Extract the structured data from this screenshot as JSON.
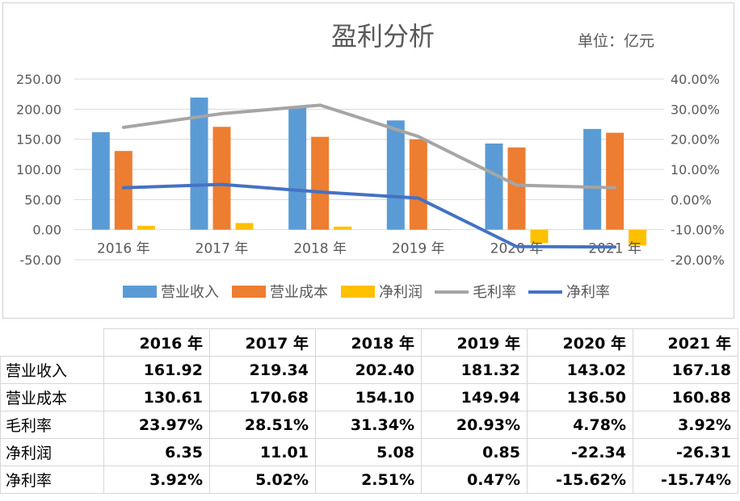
{
  "chart_data": {
    "type": "bar",
    "title": "盈利分析",
    "unit_label": "单位：亿元",
    "categories": [
      "2016 年",
      "2017 年",
      "2018 年",
      "2019 年",
      "2020 年",
      "2021 年"
    ],
    "y_left": {
      "min": -50,
      "max": 250,
      "step": 50,
      "ticks": [
        "250.00",
        "200.00",
        "150.00",
        "100.00",
        "50.00",
        "0.00",
        "-50.00"
      ]
    },
    "y_right": {
      "min": -20,
      "max": 40,
      "step": 10,
      "ticks": [
        "40.00%",
        "30.00%",
        "20.00%",
        "10.00%",
        "0.00%",
        "-10.00%",
        "-20.00%"
      ]
    },
    "series": [
      {
        "name": "营业收入",
        "kind": "bar",
        "axis": "left",
        "color": "#5B9BD5",
        "values": [
          161.92,
          219.34,
          202.4,
          181.32,
          143.02,
          167.18
        ]
      },
      {
        "name": "营业成本",
        "kind": "bar",
        "axis": "left",
        "color": "#ED7D31",
        "values": [
          130.61,
          170.68,
          154.1,
          149.94,
          136.5,
          160.88
        ]
      },
      {
        "name": "净利润",
        "kind": "bar",
        "axis": "left",
        "color": "#FFC000",
        "values": [
          6.35,
          11.01,
          5.08,
          0.85,
          -22.34,
          -26.31
        ]
      },
      {
        "name": "毛利率",
        "kind": "line",
        "axis": "right",
        "color": "#A5A5A5",
        "values": [
          23.97,
          28.51,
          31.34,
          20.93,
          4.78,
          3.92
        ]
      },
      {
        "name": "净利率",
        "kind": "line",
        "axis": "right",
        "color": "#4472C4",
        "values": [
          3.92,
          5.02,
          2.51,
          0.47,
          -15.62,
          -15.74
        ]
      }
    ],
    "grid": "horizontal",
    "legend_position": "bottom"
  },
  "table": {
    "headers": [
      "2016 年",
      "2017 年",
      "2018 年",
      "2019 年",
      "2020 年",
      "2021 年"
    ],
    "rows": [
      {
        "label": "营业收入",
        "cells": [
          "161.92",
          "219.34",
          "202.40",
          "181.32",
          "143.02",
          "167.18"
        ]
      },
      {
        "label": "营业成本",
        "cells": [
          "130.61",
          "170.68",
          "154.10",
          "149.94",
          "136.50",
          "160.88"
        ]
      },
      {
        "label": "毛利率",
        "cells": [
          "23.97%",
          "28.51%",
          "31.34%",
          "20.93%",
          "4.78%",
          "3.92%"
        ]
      },
      {
        "label": "净利润",
        "cells": [
          "6.35",
          "11.01",
          "5.08",
          "0.85",
          "-22.34",
          "-26.31"
        ]
      },
      {
        "label": "净利率",
        "cells": [
          "3.92%",
          "5.02%",
          "2.51%",
          "0.47%",
          "-15.62%",
          "-15.74%"
        ]
      }
    ]
  }
}
